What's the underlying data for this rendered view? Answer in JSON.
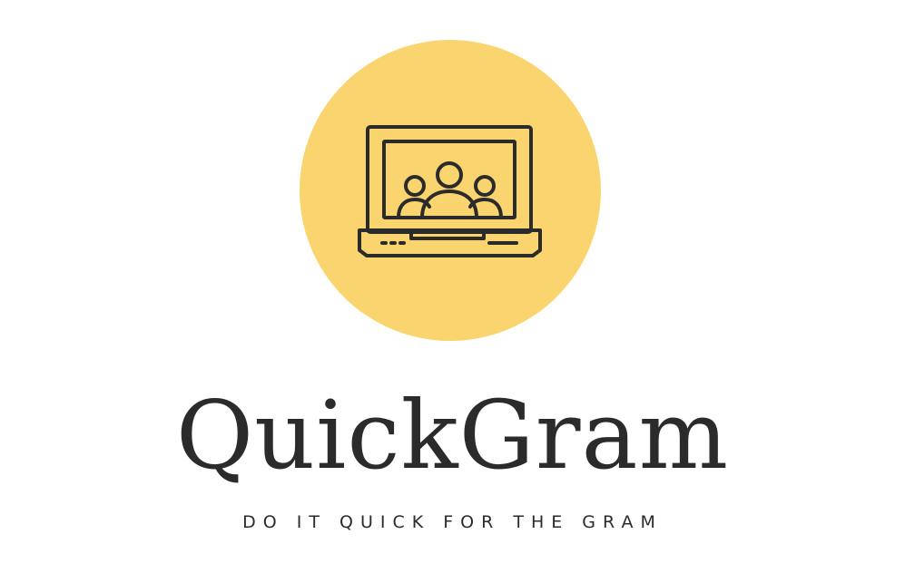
{
  "logo": {
    "icon": "laptop-group-icon",
    "circle_color": "#F9D46F",
    "ink_color": "#2b2b2b",
    "brand_name": "QuickGram",
    "tagline": "DO IT QUICK FOR THE GRAM"
  }
}
